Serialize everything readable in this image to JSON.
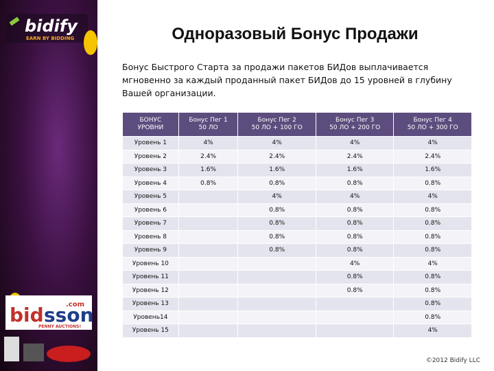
{
  "logo": {
    "name": "bidify",
    "tagline": "EARN BY BIDDING"
  },
  "partner": {
    "name_a": "bid",
    "name_b": "sson",
    "domain": ".com",
    "tagline": "PENNY AUCTIONS!"
  },
  "title": "Одноразовый Бонус Продажи",
  "intro": "Бонус Быстрого Старта за продажи пакетов БИДов выплачивается мгновенно за каждый проданный пакет БИДов до 15 уровней в глубину Вашей организации.",
  "table": {
    "header": [
      [
        "БОНУС",
        "УРОВНИ"
      ],
      [
        "Бонус Пег 1",
        "50 ЛО"
      ],
      [
        "Бонус Пег 2",
        "50 ЛО + 100 ГО"
      ],
      [
        "Бонус Пег 3",
        "50 ЛО + 200 ГО"
      ],
      [
        "Бонус Пег 4",
        "50 ЛО + 300 ГО"
      ]
    ],
    "rows": [
      [
        "Уровень 1",
        "4%",
        "4%",
        "4%",
        "4%"
      ],
      [
        "Уровень 2",
        "2.4%",
        "2.4%",
        "2.4%",
        "2.4%"
      ],
      [
        "Уровень 3",
        "1.6%",
        "1.6%",
        "1.6%",
        "1.6%"
      ],
      [
        "Уровень 4",
        "0.8%",
        "0.8%",
        "0.8%",
        "0.8%"
      ],
      [
        "Уровень 5",
        null,
        "4%",
        "4%",
        "4%"
      ],
      [
        "Уровень 6",
        null,
        "0.8%",
        "0.8%",
        "0.8%"
      ],
      [
        "Уровень 7",
        null,
        "0.8%",
        "0.8%",
        "0.8%"
      ],
      [
        "Уровень 8",
        null,
        "0.8%",
        "0.8%",
        "0.8%"
      ],
      [
        "Уровень 9",
        null,
        "0.8%",
        "0.8%",
        "0.8%"
      ],
      [
        "Уровень 10",
        null,
        null,
        "4%",
        "4%"
      ],
      [
        "Уровень 11",
        null,
        null,
        "0.8%",
        "0.8%"
      ],
      [
        "Уровень 12",
        null,
        null,
        "0.8%",
        "0.8%"
      ],
      [
        "Уровень 13",
        null,
        null,
        null,
        "0.8%"
      ],
      [
        "Уровень14",
        null,
        null,
        null,
        "0.8%"
      ],
      [
        "Уровень 15",
        null,
        null,
        null,
        "4%"
      ]
    ]
  },
  "footer": "©2012   Bidify LLC"
}
